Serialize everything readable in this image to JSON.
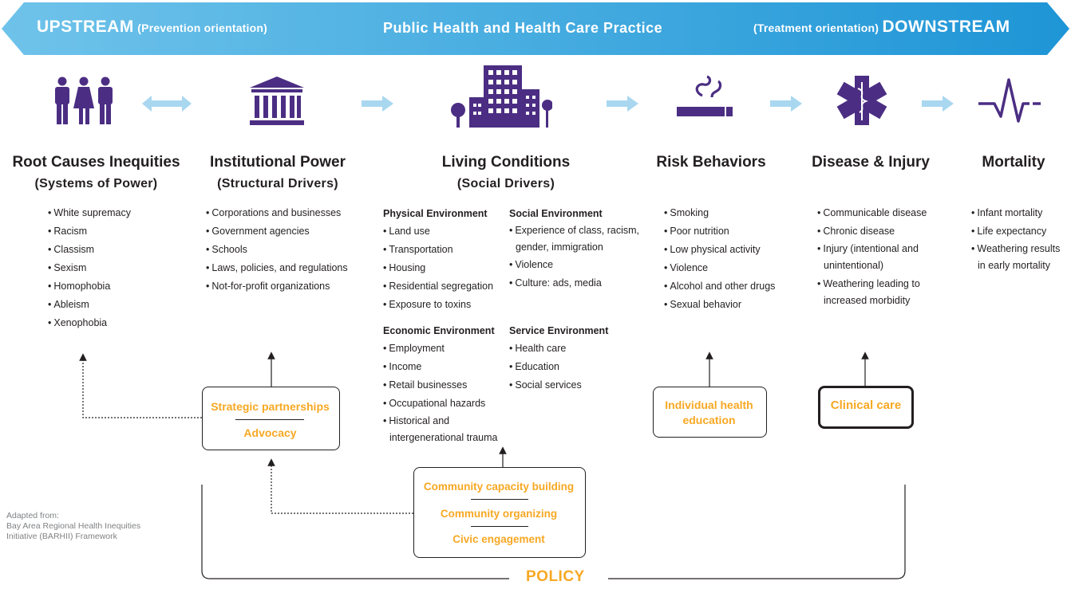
{
  "banner": {
    "upstream": "UPSTREAM",
    "prevention": "(Prevention orientation)",
    "center": "Public Health and Health Care Practice",
    "treatment": "(Treatment orientation)",
    "downstream": "DOWNSTREAM"
  },
  "colors": {
    "banner": "#3aa6dc",
    "icon": "#4b2e83",
    "arrow": "#a9d7f0",
    "accent": "#f7a823"
  },
  "icons": [
    "people-icon",
    "institution-icon",
    "buildings-icon",
    "cigarette-icon",
    "star-of-life-icon",
    "heartbeat-icon"
  ],
  "columns": [
    {
      "title": "Root Causes Inequities",
      "subtitle": "(Systems of Power)",
      "items": [
        "White supremacy",
        "Racism",
        "Classism",
        "Sexism",
        "Homophobia",
        "Ableism",
        "Xenophobia"
      ]
    },
    {
      "title": "Institutional Power",
      "subtitle": "(Structural Drivers)",
      "items": [
        "Corporations and businesses",
        "Government agencies",
        "Schools",
        "Laws, policies, and regulations",
        "Not-for-profit organizations"
      ]
    },
    {
      "title": "Living Conditions",
      "subtitle": "(Social Drivers)",
      "physical": {
        "heading": "Physical Environment",
        "items": [
          "Land use",
          "Transportation",
          "Housing",
          "Residential segregation",
          "Exposure to toxins"
        ]
      },
      "social": {
        "heading": "Social Environment",
        "items": [
          "Experience of class, racism,",
          "gender, immigration",
          "Violence",
          "Culture: ads, media"
        ]
      },
      "economic": {
        "heading": "Economic Environment",
        "items": [
          "Employment",
          "Income",
          "Retail businesses",
          "Occupational hazards",
          "Historical and",
          "intergenerational trauma"
        ]
      },
      "service": {
        "heading": "Service Environment",
        "items": [
          "Health care",
          "Education",
          "Social services"
        ]
      }
    },
    {
      "title": "Risk Behaviors",
      "items": [
        "Smoking",
        "Poor nutrition",
        "Low physical activity",
        "Violence",
        "Alcohol and other drugs",
        "Sexual behavior"
      ]
    },
    {
      "title": "Disease & Injury",
      "items": [
        "Communicable disease",
        "Chronic disease",
        "Injury (intentional and",
        "unintentional)",
        "Weathering leading to",
        "increased morbidity"
      ]
    },
    {
      "title": "Mortality",
      "items": [
        "Infant mortality",
        "Life expectancy",
        "Weathering results",
        "in early mortality"
      ]
    }
  ],
  "boxes": {
    "strategic": "Strategic partnerships",
    "advocacy": "Advocacy",
    "individual1": "Individual health",
    "individual2": "education",
    "clinical": "Clinical care",
    "community1": "Community capacity building",
    "community2": "Community organizing",
    "community3": "Civic engagement"
  },
  "policy": "POLICY",
  "credit": [
    "Adapted from:",
    "Bay Area Regional Health Inequities",
    "Initiative (BARHII) Framework"
  ]
}
